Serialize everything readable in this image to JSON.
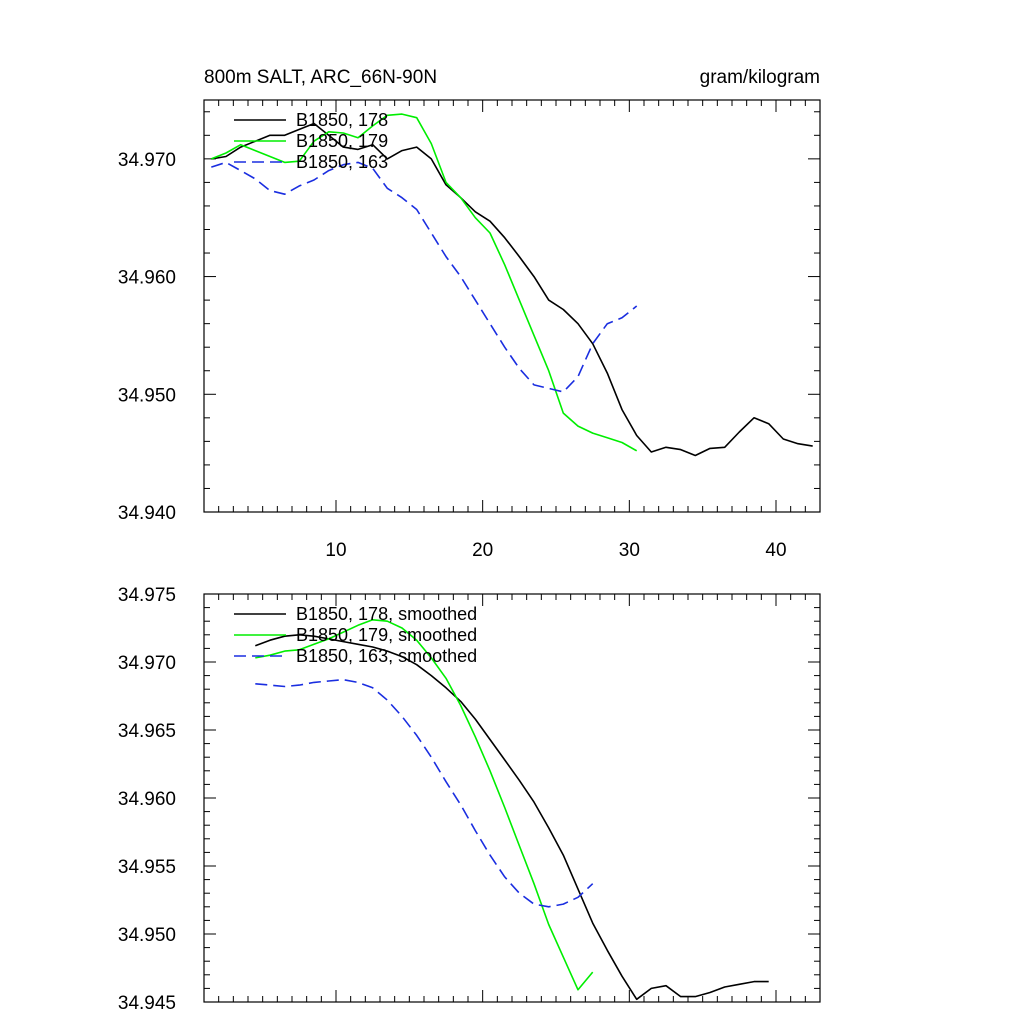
{
  "chart_data": [
    {
      "type": "line",
      "title": "800m SALT, ARC_66N-90N",
      "units_label": "gram/kilogram",
      "xlim": [
        1,
        43
      ],
      "ylim": [
        34.94,
        34.975
      ],
      "xticks": [
        10,
        20,
        30,
        40
      ],
      "xtick_labels": [
        "10",
        "20",
        "30",
        "40"
      ],
      "yticks": [
        34.94,
        34.95,
        34.96,
        34.97
      ],
      "ytick_labels": [
        "34.940",
        "34.950",
        "34.960",
        "34.970"
      ],
      "legend_position": "top-left",
      "series": [
        {
          "name": "B1850, 178",
          "color": "#000000",
          "dash": "solid",
          "x": [
            1.5,
            2.5,
            3.5,
            4.5,
            5.5,
            6.5,
            7.5,
            8.5,
            9.5,
            10.5,
            11.5,
            12.5,
            13.5,
            14.5,
            15.5,
            16.5,
            17.5,
            18.5,
            19.5,
            20.5,
            21.5,
            22.5,
            23.5,
            24.5,
            25.5,
            26.5,
            27.5,
            28.5,
            29.5,
            30.5,
            31.5,
            32.5,
            33.5,
            34.5,
            35.5,
            36.5,
            37.5,
            38.5,
            39.5,
            40.5,
            41.5,
            42.5
          ],
          "y": [
            34.97,
            34.9702,
            34.971,
            34.9715,
            34.972,
            34.972,
            34.9725,
            34.973,
            34.972,
            34.971,
            34.9708,
            34.9712,
            34.97,
            34.9707,
            34.971,
            34.97,
            34.9678,
            34.9667,
            34.9655,
            34.9647,
            34.9633,
            34.9617,
            34.96,
            34.958,
            34.9572,
            34.956,
            34.9543,
            34.9518,
            34.9487,
            34.9465,
            34.9451,
            34.9455,
            34.9453,
            34.9448,
            34.9454,
            34.9455,
            34.9468,
            34.948,
            34.9475,
            34.9462,
            34.9458,
            34.9456
          ]
        },
        {
          "name": "B1850, 179",
          "color": "#00ee00",
          "dash": "solid",
          "x": [
            1.5,
            2.5,
            3.5,
            4.5,
            5.5,
            6.5,
            7.5,
            8.5,
            9.5,
            10.5,
            11.5,
            12.5,
            13.5,
            14.5,
            15.5,
            16.5,
            17.5,
            18.5,
            19.5,
            20.5,
            21.5,
            22.5,
            23.5,
            24.5,
            25.5,
            26.5,
            27.5,
            28.5,
            29.5,
            30.5
          ],
          "y": [
            34.97,
            34.9705,
            34.9712,
            34.9707,
            34.9702,
            34.9697,
            34.9698,
            34.9715,
            34.9723,
            34.9722,
            34.9718,
            34.9728,
            34.9737,
            34.9738,
            34.9735,
            34.9713,
            34.968,
            34.9667,
            34.965,
            34.9637,
            34.961,
            34.958,
            34.955,
            34.952,
            34.9484,
            34.9473,
            34.9467,
            34.9463,
            34.9459,
            34.9452
          ]
        },
        {
          "name": "B1850, 163",
          "color": "#1a2ee0",
          "dash": "dashed",
          "x": [
            1.5,
            2.5,
            3.5,
            4.5,
            5.5,
            6.5,
            7.5,
            8.5,
            9.5,
            10.5,
            11.5,
            12.5,
            13.5,
            14.5,
            15.5,
            16.5,
            17.5,
            18.5,
            19.5,
            20.5,
            21.5,
            22.5,
            23.5,
            24.5,
            25.5,
            26.5,
            27.5,
            28.5,
            29.5,
            30.5
          ],
          "y": [
            34.9693,
            34.9697,
            34.969,
            34.9683,
            34.9673,
            34.967,
            34.9677,
            34.9682,
            34.969,
            34.9695,
            34.9697,
            34.9692,
            34.9675,
            34.9667,
            34.9657,
            34.9637,
            34.9617,
            34.96,
            34.958,
            34.956,
            34.954,
            34.9522,
            34.9508,
            34.9505,
            34.9502,
            34.9515,
            34.9543,
            34.956,
            34.9565,
            34.9575
          ]
        }
      ]
    },
    {
      "type": "line",
      "title": "",
      "xlim": [
        1,
        43
      ],
      "ylim": [
        34.945,
        34.975
      ],
      "xticks": [
        10,
        20,
        30,
        40
      ],
      "xtick_labels": [],
      "yticks": [
        34.945,
        34.95,
        34.955,
        34.96,
        34.965,
        34.97,
        34.975
      ],
      "ytick_labels": [
        "34.945",
        "34.950",
        "34.955",
        "34.960",
        "34.965",
        "34.970",
        "34.975"
      ],
      "legend_position": "top-left",
      "series": [
        {
          "name": "B1850, 178, smoothed",
          "color": "#000000",
          "dash": "solid",
          "x": [
            4.5,
            5.5,
            6.5,
            7.5,
            8.5,
            9.5,
            10.5,
            11.5,
            12.5,
            13.5,
            14.5,
            15.5,
            16.5,
            17.5,
            18.5,
            19.5,
            20.5,
            21.5,
            22.5,
            23.5,
            24.5,
            25.5,
            26.5,
            27.5,
            28.5,
            29.5,
            30.5,
            31.5,
            32.5,
            33.5,
            34.5,
            35.5,
            36.5,
            37.5,
            38.5,
            39.5
          ],
          "y": [
            34.9712,
            34.9716,
            34.9719,
            34.972,
            34.9719,
            34.9717,
            34.9715,
            34.9713,
            34.9711,
            34.9708,
            34.9704,
            34.9698,
            34.969,
            34.9681,
            34.9671,
            34.9658,
            34.9643,
            34.9628,
            34.9613,
            34.9597,
            34.9578,
            34.9558,
            34.9533,
            34.9508,
            34.9488,
            34.9469,
            34.9452,
            34.946,
            34.9462,
            34.9454,
            34.9454,
            34.9457,
            34.9461,
            34.9463,
            34.9465,
            34.9465
          ]
        },
        {
          "name": "B1850, 179, smoothed",
          "color": "#00ee00",
          "dash": "solid",
          "x": [
            4.5,
            5.5,
            6.5,
            7.5,
            8.5,
            9.5,
            10.5,
            11.5,
            12.5,
            13.5,
            14.5,
            15.5,
            16.5,
            17.5,
            18.5,
            19.5,
            20.5,
            21.5,
            22.5,
            23.5,
            24.5,
            25.5,
            26.5,
            27.5
          ],
          "y": [
            34.9703,
            34.9705,
            34.9708,
            34.9709,
            34.9713,
            34.9717,
            34.9722,
            34.9727,
            34.9731,
            34.973,
            34.9725,
            34.9716,
            34.9703,
            34.9688,
            34.9668,
            34.9645,
            34.962,
            34.9593,
            34.9565,
            34.9537,
            34.9507,
            34.9483,
            34.9459,
            34.9472
          ]
        },
        {
          "name": "B1850, 163, smoothed",
          "color": "#1a2ee0",
          "dash": "dashed",
          "x": [
            4.5,
            5.5,
            6.5,
            7.5,
            8.5,
            9.5,
            10.5,
            11.5,
            12.5,
            13.5,
            14.5,
            15.5,
            16.5,
            17.5,
            18.5,
            19.5,
            20.5,
            21.5,
            22.5,
            23.5,
            24.5,
            25.5,
            26.5,
            27.5
          ],
          "y": [
            34.9684,
            34.9683,
            34.9682,
            34.9683,
            34.9685,
            34.9686,
            34.9687,
            34.9685,
            34.9681,
            34.9672,
            34.966,
            34.9646,
            34.963,
            34.9612,
            34.9595,
            34.9576,
            34.9558,
            34.9542,
            34.953,
            34.9522,
            34.952,
            34.9522,
            34.9527,
            34.9537
          ]
        }
      ]
    }
  ]
}
